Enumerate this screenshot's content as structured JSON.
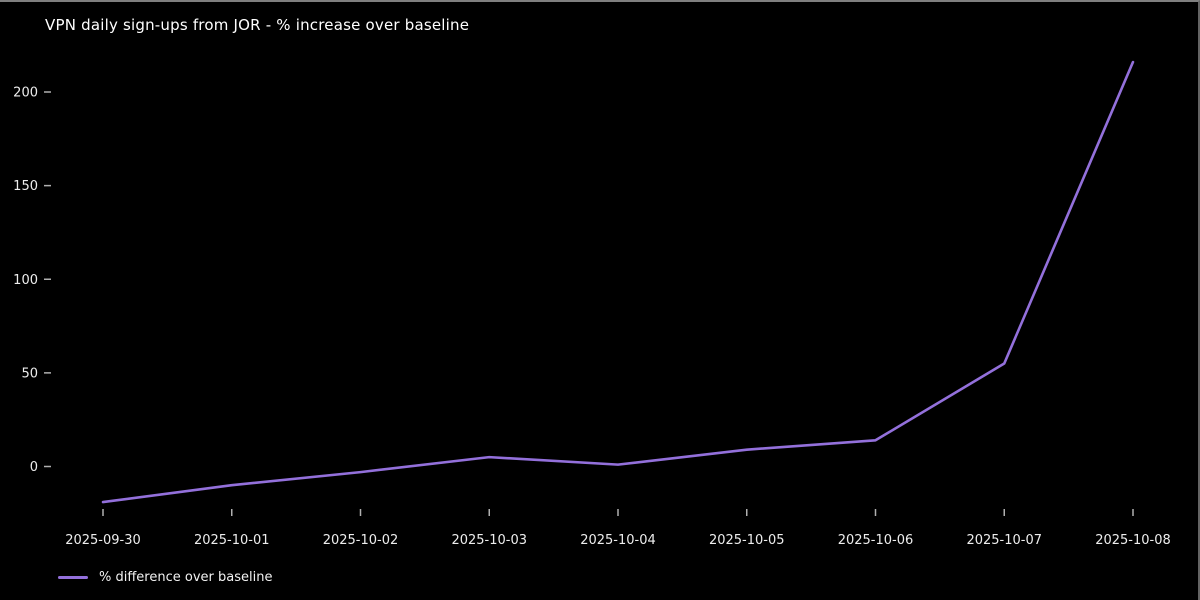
{
  "window": {
    "bg": "#000000",
    "border_top_color": "#7f7f7f",
    "border_right_color": "#636363"
  },
  "chart_data": {
    "type": "line",
    "title": "VPN daily sign-ups from JOR - % increase over baseline",
    "x": [
      "2025-09-30",
      "2025-10-01",
      "2025-10-02",
      "2025-10-03",
      "2025-10-04",
      "2025-10-05",
      "2025-10-06",
      "2025-10-07",
      "2025-10-08"
    ],
    "series": [
      {
        "name": "% difference over baseline",
        "color": "#9370db",
        "values": [
          -19,
          -10,
          -3,
          5,
          1,
          9,
          14,
          55,
          216
        ]
      }
    ],
    "xlabel": "",
    "ylabel": "",
    "yticks": [
      0,
      50,
      100,
      150,
      200
    ],
    "ylim": [
      -23,
      227
    ],
    "grid": false,
    "background": "#000000",
    "tick_color": "#b0b0b0",
    "tick_label_color": "#ededed",
    "legend": {
      "label": "% difference over baseline",
      "position": "bottom-left"
    }
  }
}
